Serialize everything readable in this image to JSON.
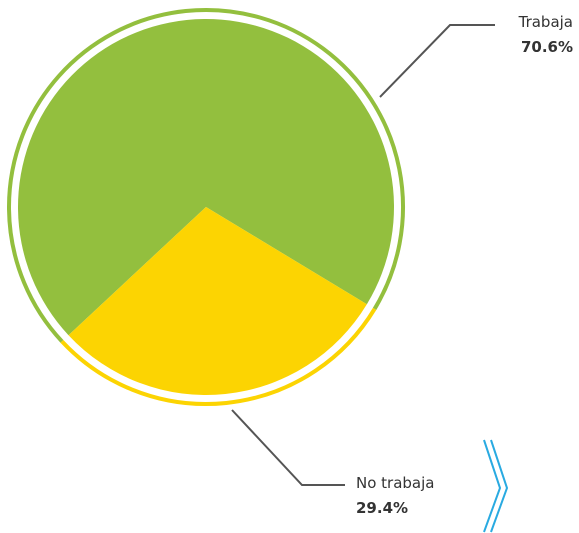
{
  "chart_data": {
    "type": "pie",
    "categories": [
      "Trabaja",
      "No trabaja"
    ],
    "values": [
      70.6,
      29.4
    ],
    "value_labels": [
      "70.6%",
      "29.4%"
    ],
    "colors": [
      "#93bf3e",
      "#fcd402"
    ]
  }
}
